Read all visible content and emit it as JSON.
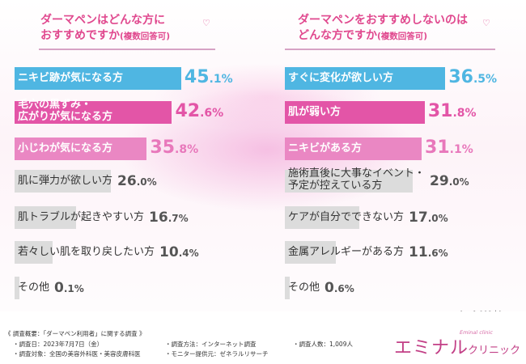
{
  "chart_data": [
    {
      "type": "bar",
      "title_line1": "ダーマペンはどんな方に",
      "title_line2": "おすすめですか",
      "title_note": "(複数回答可)",
      "xlim": [
        0,
        100
      ],
      "bars": [
        {
          "label": [
            "ニキビ跡が気になる方"
          ],
          "value": 45.1,
          "int": "45",
          "frac": ".1%",
          "color": "#4fb6e2",
          "textColor": "#ffffff",
          "valueColor": "#4fb6e2"
        },
        {
          "label": [
            "毛穴の黒ずみ・",
            "広がりが気になる方"
          ],
          "value": 42.6,
          "int": "42",
          "frac": ".6%",
          "color": "#e355a7",
          "textColor": "#ffffff",
          "valueColor": "#e355a7"
        },
        {
          "label": [
            "小じわが気になる方"
          ],
          "value": 35.8,
          "int": "35",
          "frac": ".8%",
          "color": "#ea87c3",
          "textColor": "#ffffff",
          "valueColor": "#e878bb"
        },
        {
          "label": [
            "肌に弾力が欲しい方"
          ],
          "value": 26.0,
          "int": "26",
          "frac": ".0%",
          "color": "#dcdcdc",
          "textColor": "#333333",
          "valueColor": "#555555"
        },
        {
          "label": [
            "肌トラブルが起きやすい方"
          ],
          "value": 16.7,
          "int": "16",
          "frac": ".7%",
          "color": "#dcdcdc",
          "textColor": "#333333",
          "valueColor": "#555555"
        },
        {
          "label": [
            "若々しい肌を取り戻したい方"
          ],
          "value": 10.4,
          "int": "10",
          "frac": ".4%",
          "color": "#dcdcdc",
          "textColor": "#333333",
          "valueColor": "#555555"
        },
        {
          "label": [
            "その他"
          ],
          "value": 0.1,
          "int": "0",
          "frac": ".1%",
          "color": "#dcdcdc",
          "textColor": "#333333",
          "valueColor": "#555555"
        }
      ]
    },
    {
      "type": "bar",
      "title_line1": "ダーマペンをおすすめしないのは",
      "title_line2": "どんな方ですか",
      "title_note": "(複数回答可)",
      "xlim": [
        0,
        100
      ],
      "bars": [
        {
          "label": [
            "すぐに変化が欲しい方"
          ],
          "value": 36.5,
          "int": "36",
          "frac": ".5%",
          "color": "#4fb6e2",
          "textColor": "#ffffff",
          "valueColor": "#4fb6e2"
        },
        {
          "label": [
            "肌が弱い方"
          ],
          "value": 31.8,
          "int": "31",
          "frac": ".8%",
          "color": "#e355a7",
          "textColor": "#ffffff",
          "valueColor": "#e355a7"
        },
        {
          "label": [
            "ニキビがある方"
          ],
          "value": 31.1,
          "int": "31",
          "frac": ".1%",
          "color": "#ea87c3",
          "textColor": "#ffffff",
          "valueColor": "#e878bb"
        },
        {
          "label": [
            "施術直後に大事なイベント・",
            "予定が控えている方"
          ],
          "value": 29.0,
          "int": "29",
          "frac": ".0%",
          "color": "#dcdcdc",
          "textColor": "#333333",
          "valueColor": "#555555"
        },
        {
          "label": [
            "ケアが自分でできない方"
          ],
          "value": 17.0,
          "int": "17",
          "frac": ".0%",
          "color": "#dcdcdc",
          "textColor": "#333333",
          "valueColor": "#555555"
        },
        {
          "label": [
            "金属アレルギーがある方"
          ],
          "value": 11.6,
          "int": "11",
          "frac": ".6%",
          "color": "#dcdcdc",
          "textColor": "#333333",
          "valueColor": "#555555"
        },
        {
          "label": [
            "その他"
          ],
          "value": 0.6,
          "int": "0",
          "frac": ".6%",
          "color": "#dcdcdc",
          "textColor": "#333333",
          "valueColor": "#555555"
        }
      ]
    }
  ],
  "sample_note": "(n=1,009人)",
  "footer": {
    "overview": "《 調査概要：「ダーマペン利用者」に関する調査 》",
    "date": "・調査日：2023年7月7日（金）",
    "target": "・調査対象：全国の美容外科医・美容皮膚科医",
    "method": "・調査方法：インターネット調査",
    "provider": "・モニター提供元：ゼネラルリサーチ",
    "count": "・調査人数：1,009人"
  },
  "logo": {
    "main": "エミナル",
    "sub": "クリニック",
    "tiny": "Eminal clinic"
  }
}
